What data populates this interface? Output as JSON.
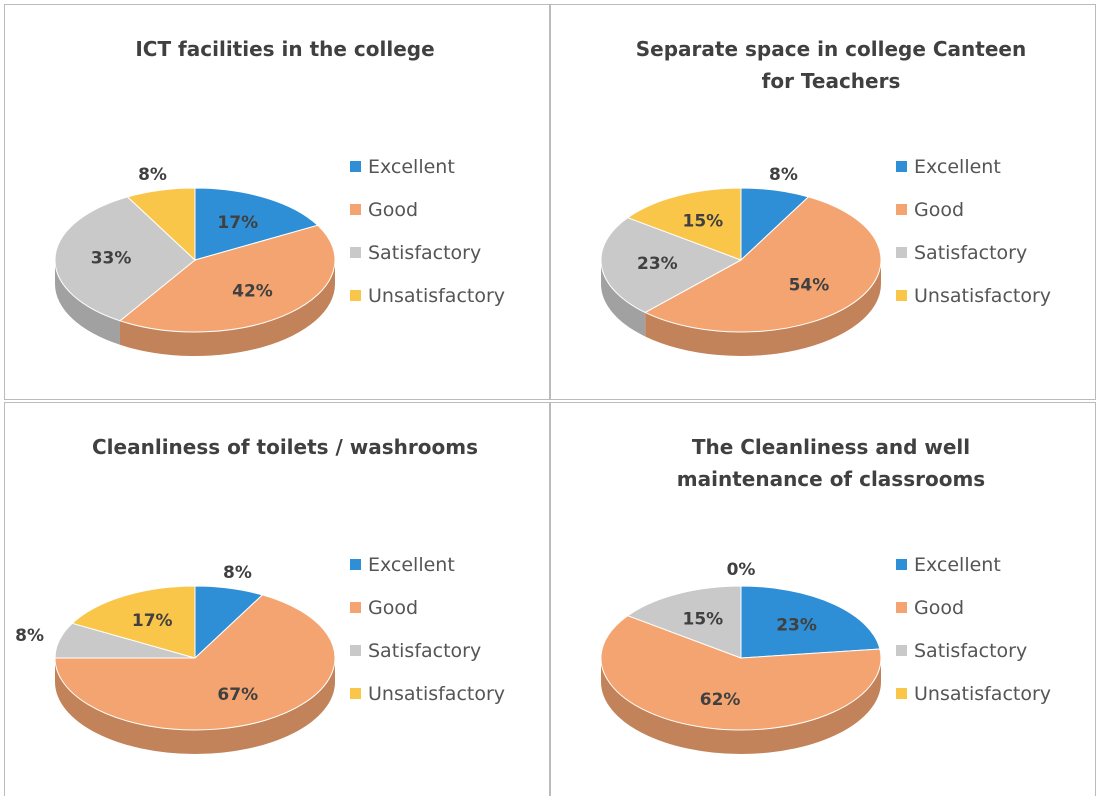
{
  "chart_data": [
    {
      "type": "pie",
      "title": "ICT facilities in the college",
      "categories": [
        "Excellent",
        "Good",
        "Satisfactory",
        "Unsatisfactory"
      ],
      "values": [
        17,
        42,
        33,
        8
      ],
      "value_labels": [
        "17%",
        "42%",
        "33%",
        "8%"
      ],
      "colors": [
        "#2e8fd6",
        "#f4a470",
        "#c9c9c9",
        "#f9c64a"
      ],
      "legend": "right"
    },
    {
      "type": "pie",
      "title": "Separate space in college Canteen for Teachers",
      "categories": [
        "Excellent",
        "Good",
        "Satisfactory",
        "Unsatisfactory"
      ],
      "values": [
        8,
        54,
        23,
        15
      ],
      "value_labels": [
        "8%",
        "54%",
        "23%",
        "15%"
      ],
      "colors": [
        "#2e8fd6",
        "#f4a470",
        "#c9c9c9",
        "#f9c64a"
      ],
      "legend": "right"
    },
    {
      "type": "pie",
      "title": "Cleanliness of toilets / washrooms",
      "categories": [
        "Excellent",
        "Good",
        "Satisfactory",
        "Unsatisfactory"
      ],
      "values": [
        8,
        67,
        8,
        17
      ],
      "value_labels": [
        "8%",
        "67%",
        "8%",
        "17%"
      ],
      "colors": [
        "#2e8fd6",
        "#f4a470",
        "#c9c9c9",
        "#f9c64a"
      ],
      "legend": "right"
    },
    {
      "type": "pie",
      "title": "The Cleanliness and well maintenance of classrooms",
      "categories": [
        "Excellent",
        "Good",
        "Satisfactory",
        "Unsatisfactory"
      ],
      "values": [
        23,
        62,
        15,
        0
      ],
      "value_labels": [
        "23%",
        "62%",
        "15%",
        "0%"
      ],
      "colors": [
        "#2e8fd6",
        "#f4a470",
        "#c9c9c9",
        "#f9c64a"
      ],
      "legend": "right"
    }
  ]
}
